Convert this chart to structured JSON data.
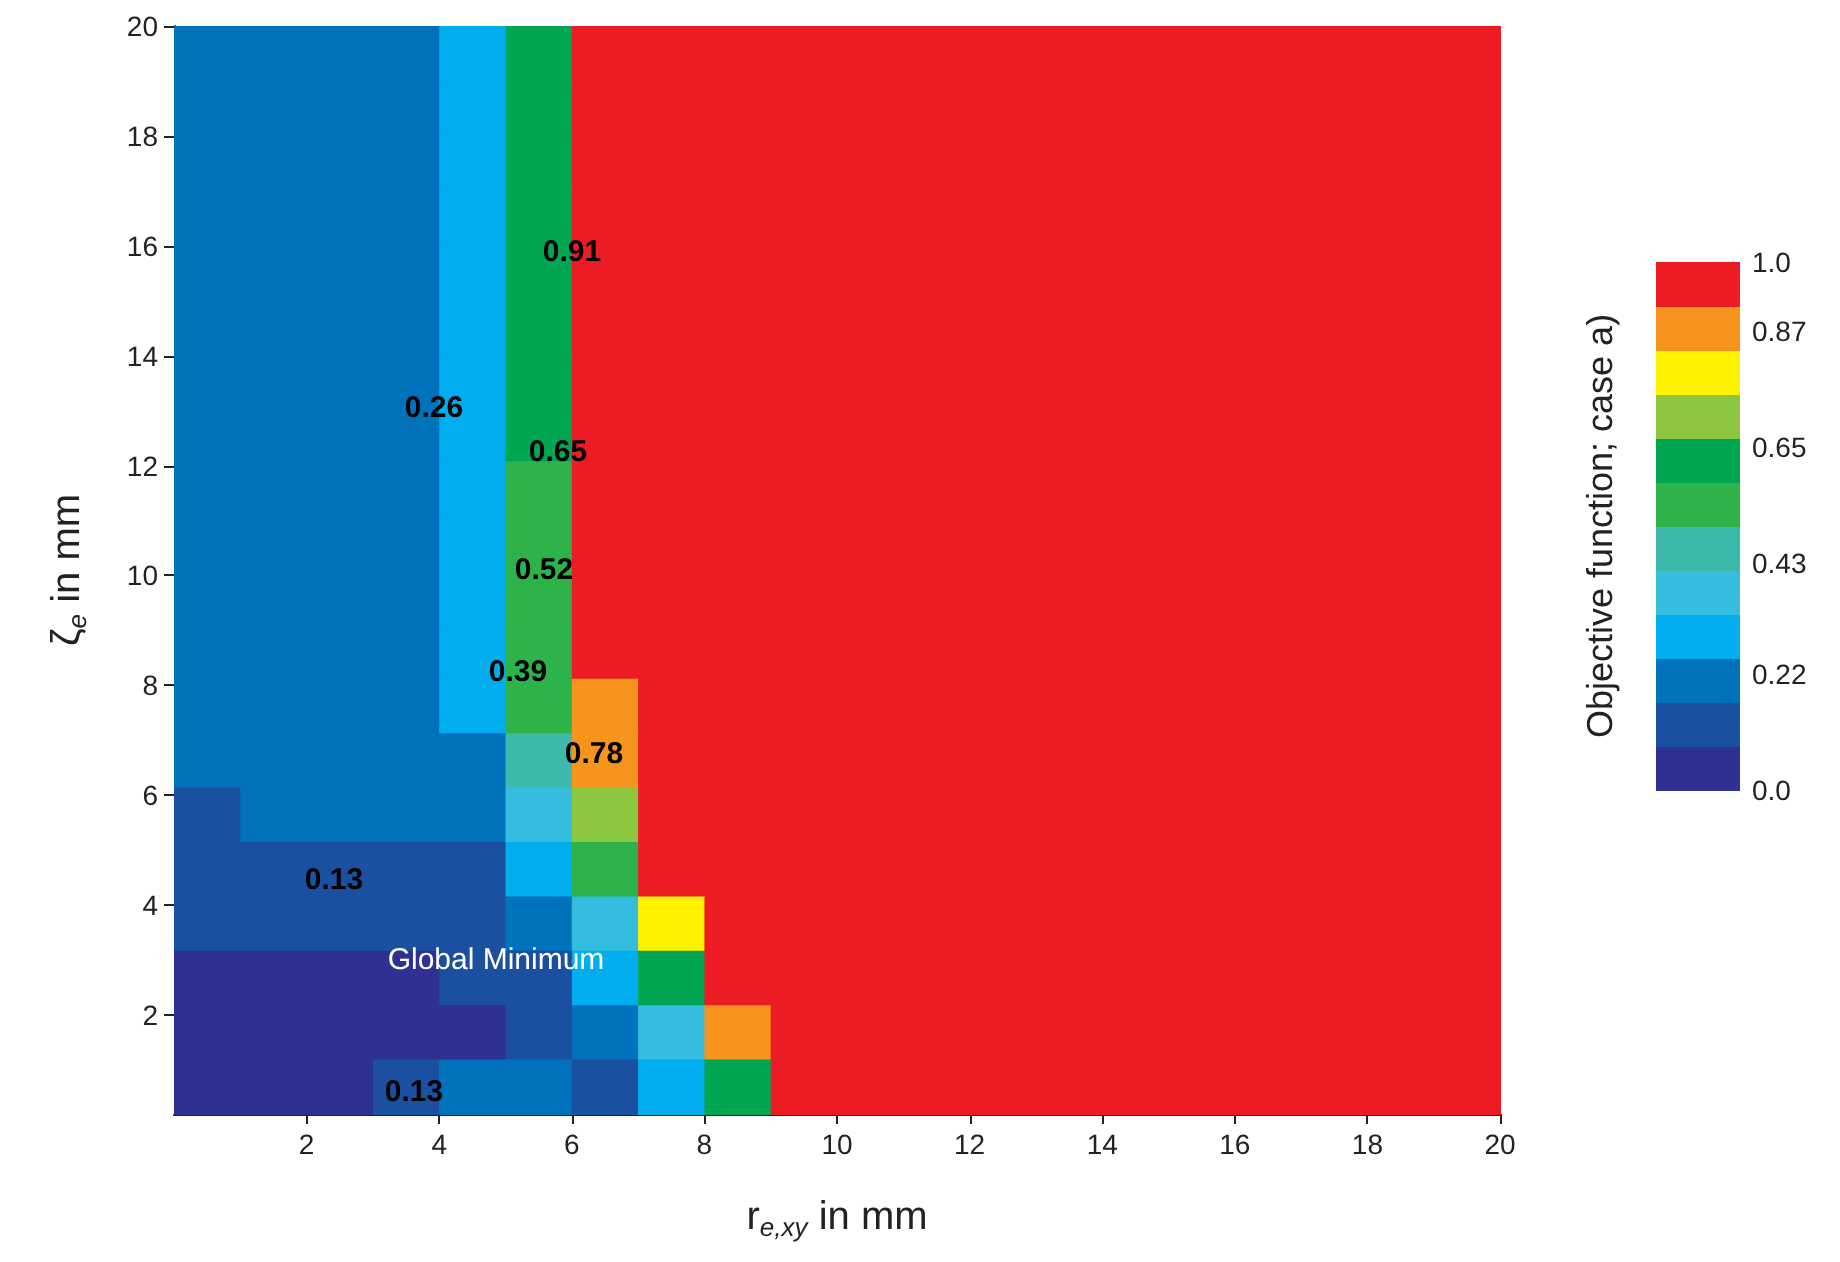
{
  "chart_data": {
    "type": "heatmap",
    "xlabel": "r$_{e,xy}$ in mm",
    "ylabel": "ζ$_{e}$ in mm",
    "clabel": "Objective function; case a)",
    "xlim": [
      0,
      20
    ],
    "ylim": [
      0.2,
      20
    ],
    "xticks": [
      2,
      4,
      6,
      8,
      10,
      12,
      14,
      16,
      18,
      20
    ],
    "yticks": [
      2,
      4,
      6,
      8,
      10,
      12,
      14,
      16,
      18,
      20
    ],
    "clim": [
      0,
      1
    ],
    "cticks": [
      {
        "value": 0,
        "label": "0.0"
      },
      0.22,
      0.43,
      0.65,
      0.87,
      {
        "value": 1,
        "label": "1.0"
      }
    ],
    "colors": [
      "#2e3192",
      "#1b4fa0",
      "#0072bc",
      "#00aeef",
      "#35bde0",
      "#3cb9a8",
      "#2db34a",
      "#00a651",
      "#8dc63f",
      "#fff200",
      "#f7941d",
      "#ed1c24"
    ],
    "cells": [
      [
        0.24,
        0.24,
        0.24,
        0.24,
        0.3,
        0.6,
        1,
        1,
        1,
        1,
        1,
        1,
        1,
        1,
        1,
        1,
        1,
        1,
        1,
        1
      ],
      [
        0.24,
        0.24,
        0.24,
        0.24,
        0.3,
        0.6,
        1,
        1,
        1,
        1,
        1,
        1,
        1,
        1,
        1,
        1,
        1,
        1,
        1,
        1
      ],
      [
        0.24,
        0.24,
        0.24,
        0.24,
        0.3,
        0.6,
        1,
        1,
        1,
        1,
        1,
        1,
        1,
        1,
        1,
        1,
        1,
        1,
        1,
        1
      ],
      [
        0.24,
        0.24,
        0.24,
        0.24,
        0.3,
        0.6,
        1,
        1,
        1,
        1,
        1,
        1,
        1,
        1,
        1,
        1,
        1,
        1,
        1,
        1
      ],
      [
        0.24,
        0.24,
        0.24,
        0.24,
        0.3,
        0.6,
        1,
        1,
        1,
        1,
        1,
        1,
        1,
        1,
        1,
        1,
        1,
        1,
        1,
        1
      ],
      [
        0.24,
        0.24,
        0.2,
        0.24,
        0.3,
        0.6,
        1,
        1,
        1,
        1,
        1,
        1,
        1,
        1,
        1,
        1,
        1,
        1,
        1,
        1
      ],
      [
        0.2,
        0.2,
        0.2,
        0.22,
        0.3,
        0.6,
        1,
        1,
        1,
        1,
        1,
        1,
        1,
        1,
        1,
        1,
        1,
        1,
        1,
        1
      ],
      [
        0.2,
        0.2,
        0.2,
        0.22,
        0.3,
        0.6,
        1,
        1,
        1,
        1,
        1,
        1,
        1,
        1,
        1,
        1,
        1,
        1,
        1,
        1
      ],
      [
        0.2,
        0.2,
        0.2,
        0.22,
        0.28,
        0.55,
        1,
        1,
        1,
        1,
        1,
        1,
        1,
        1,
        1,
        1,
        1,
        1,
        1,
        1
      ],
      [
        0.2,
        0.2,
        0.2,
        0.22,
        0.28,
        0.55,
        1,
        1,
        1,
        1,
        1,
        1,
        1,
        1,
        1,
        1,
        1,
        1,
        1,
        1
      ],
      [
        0.2,
        0.2,
        0.2,
        0.22,
        0.28,
        0.55,
        1,
        1,
        1,
        1,
        1,
        1,
        1,
        1,
        1,
        1,
        1,
        1,
        1,
        1
      ],
      [
        0.2,
        0.2,
        0.2,
        0.22,
        0.28,
        0.55,
        1,
        1,
        1,
        1,
        1,
        1,
        1,
        1,
        1,
        1,
        1,
        1,
        1,
        1
      ],
      [
        0.2,
        0.2,
        0.2,
        0.21,
        0.26,
        0.5,
        0.9,
        1,
        1,
        1,
        1,
        1,
        1,
        1,
        1,
        1,
        1,
        1,
        1,
        1
      ],
      [
        0.2,
        0.2,
        0.19,
        0.2,
        0.24,
        0.45,
        0.85,
        1,
        1,
        1,
        1,
        1,
        1,
        1,
        1,
        1,
        1,
        1,
        1,
        1
      ],
      [
        0.16,
        0.17,
        0.17,
        0.19,
        0.22,
        0.35,
        0.7,
        1,
        1,
        1,
        1,
        1,
        1,
        1,
        1,
        1,
        1,
        1,
        1,
        1
      ],
      [
        0.15,
        0.15,
        0.15,
        0.15,
        0.16,
        0.25,
        0.55,
        0.95,
        1,
        1,
        1,
        1,
        1,
        1,
        1,
        1,
        1,
        1,
        1,
        1
      ],
      [
        0.1,
        0.1,
        0.11,
        0.12,
        0.12,
        0.2,
        0.4,
        0.8,
        1,
        1,
        1,
        1,
        1,
        1,
        1,
        1,
        1,
        1,
        1,
        1
      ],
      [
        0.08,
        0.07,
        0.07,
        0.08,
        0.1,
        0.16,
        0.3,
        0.6,
        1,
        1,
        1,
        1,
        1,
        1,
        1,
        1,
        1,
        1,
        1,
        1
      ],
      [
        0.05,
        0.05,
        0.05,
        0.06,
        0.08,
        0.1,
        0.18,
        0.4,
        0.85,
        1,
        1,
        1,
        1,
        1,
        1,
        1,
        1,
        1,
        1,
        1
      ],
      [
        0.06,
        0.06,
        0.07,
        0.1,
        0.18,
        0.2,
        0.14,
        0.25,
        0.6,
        0.95,
        1,
        1,
        1,
        1,
        1,
        1,
        1,
        1,
        1,
        1
      ]
    ],
    "annotations": [
      "0.91",
      "0.26",
      "0.65",
      "0.52",
      "0.39",
      "0.78",
      "0.13",
      "0.13",
      "Global Minimum"
    ]
  }
}
